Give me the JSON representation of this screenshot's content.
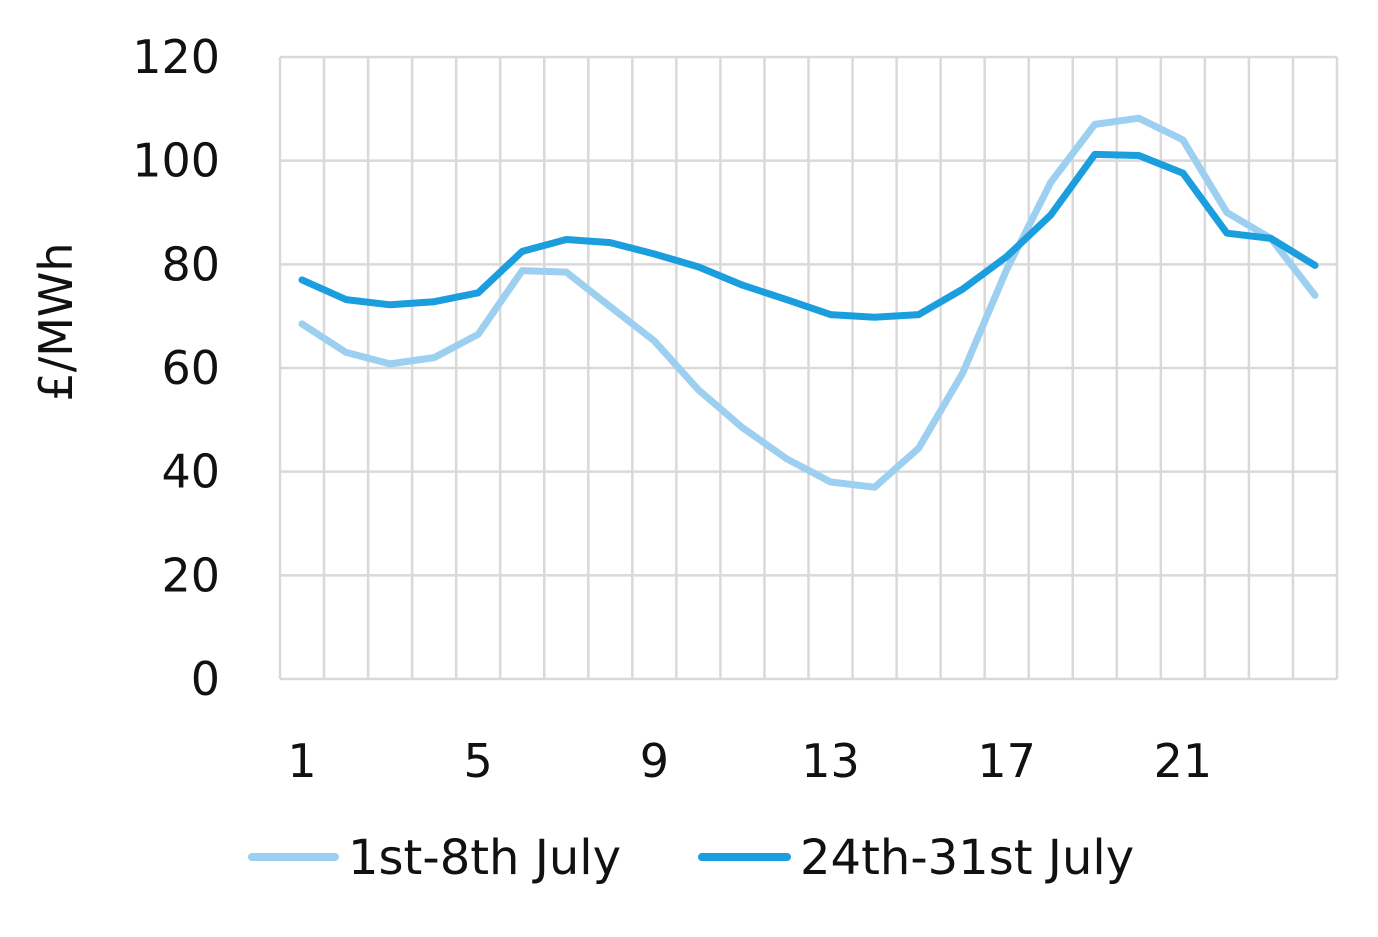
{
  "chart_data": {
    "type": "line",
    "ylabel": "£/MWh",
    "xlabel": "",
    "title": "",
    "ylim": [
      0,
      120
    ],
    "yticks": [
      0,
      20,
      40,
      60,
      80,
      100,
      120
    ],
    "x": [
      1,
      2,
      3,
      4,
      5,
      6,
      7,
      8,
      9,
      10,
      11,
      12,
      13,
      14,
      15,
      16,
      17,
      18,
      19,
      20,
      21,
      22,
      23,
      24
    ],
    "xtick_labels": [
      "1",
      "5",
      "9",
      "13",
      "17",
      "21"
    ],
    "grid": true,
    "legend_position": "bottom",
    "series": [
      {
        "name": "1st-8th July",
        "color": "#9dcff0",
        "values": [
          68.5,
          63,
          60.8,
          62,
          66.5,
          78.8,
          78.5,
          71.8,
          65.2,
          55.8,
          48.5,
          42.5,
          38,
          37,
          44.5,
          59,
          79,
          95.8,
          107,
          108.2,
          104,
          90,
          85,
          74
        ]
      },
      {
        "name": "24th-31st July",
        "color": "#1a9ede",
        "values": [
          77,
          73.2,
          72.2,
          72.8,
          74.5,
          82.5,
          84.8,
          84.2,
          82,
          79.5,
          76,
          73.2,
          70.3,
          69.8,
          70.3,
          75.2,
          81.5,
          89.5,
          101.2,
          101,
          97.6,
          86,
          85,
          79.8
        ]
      }
    ]
  }
}
